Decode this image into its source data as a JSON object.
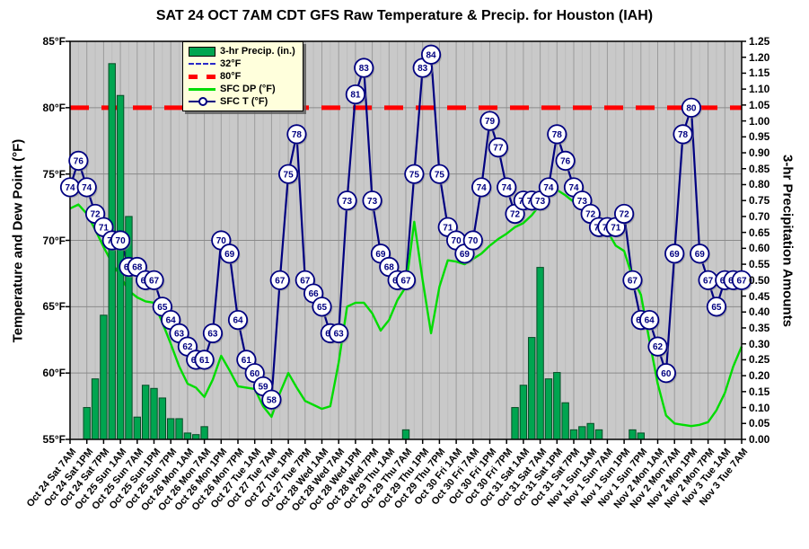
{
  "title": "SAT 24 OCT 7AM CDT GFS Raw Temperature & Precip. for Houston (IAH)",
  "legend": {
    "items": [
      {
        "swatch": "bar",
        "label": "3-hr Precip. (in.)",
        "color": "#00A550"
      },
      {
        "swatch": "dash-thin",
        "label": "32°F",
        "color": "#2929C8"
      },
      {
        "swatch": "dash-thick",
        "label": "80°F",
        "color": "#FF0000"
      },
      {
        "swatch": "line",
        "label": "SFC DP (°F)",
        "color": "#00DC00"
      },
      {
        "swatch": "line-marker",
        "label": "SFC T (°F)",
        "color": "#000080"
      }
    ]
  },
  "chart_data": {
    "type": "bar+line combo, 3-hourly model time series",
    "title": "SAT 24 OCT 7AM CDT GFS Raw Temperature & Precip. for Houston (IAH)",
    "x_label_step_hours": 6,
    "data_step_hours": 3,
    "x_labels": [
      "Oct 24 Sat 7AM",
      "Oct 24 Sat 1PM",
      "Oct 24 Sat 7PM",
      "Oct 25 Sun 1AM",
      "Oct 25 Sun 7AM",
      "Oct 25 Sun 1PM",
      "Oct 25 Sun 7PM",
      "Oct 26 Mon 1AM",
      "Oct 26 Mon 7AM",
      "Oct 26 Mon 1PM",
      "Oct 26 Mon 7PM",
      "Oct 27 Tue 1AM",
      "Oct 27 Tue 7AM",
      "Oct 27 Tue 1PM",
      "Oct 27 Tue 7PM",
      "Oct 28 Wed 1AM",
      "Oct 28 Wed 7AM",
      "Oct 28 Wed 1PM",
      "Oct 28 Wed 7PM",
      "Oct 29 Thu 1AM",
      "Oct 29 Thu 7AM",
      "Oct 29 Thu 1PM",
      "Oct 29 Thu 7PM",
      "Oct 30 Fri 1AM",
      "Oct 30 Fri 7AM",
      "Oct 30 Fri 1PM",
      "Oct 30 Fri 7PM",
      "Oct 31 Sat 1AM",
      "Oct 31 Sat 7AM",
      "Oct 31 Sat 1PM",
      "Oct 31 Sat 7PM",
      "Nov 1 Sun 1AM",
      "Nov 1 Sun 7AM",
      "Nov 1 Sun 1PM",
      "Nov 1 Sun 7PM",
      "Nov 2 Mon 1AM",
      "Nov 2 Mon 7AM",
      "Nov 2 Mon 1PM",
      "Nov 2 Mon 7PM",
      "Nov 3 Tue 1AM",
      "Nov 3 Tue 7AM"
    ],
    "y_left": {
      "title": "Temperature and Dew Point (°F)",
      "min": 55,
      "max": 85,
      "step": 5,
      "ticks": [
        "55°F",
        "60°F",
        "65°F",
        "70°F",
        "75°F",
        "80°F",
        "85°F"
      ]
    },
    "y_right": {
      "title": "3-hr Precipitation Amounts",
      "min": 0.0,
      "max": 1.25,
      "step": 0.05,
      "ticks": [
        "0.00",
        "0.05",
        "0.10",
        "0.15",
        "0.20",
        "0.25",
        "0.30",
        "0.35",
        "0.40",
        "0.45",
        "0.50",
        "0.55",
        "0.60",
        "0.65",
        "0.70",
        "0.75",
        "0.80",
        "0.85",
        "0.90",
        "0.95",
        "1.00",
        "1.05",
        "1.10",
        "1.15",
        "1.20",
        "1.25"
      ]
    },
    "reference_lines": [
      {
        "label": "80°F",
        "value": 80,
        "color": "#FF0000",
        "style": "thick-dashed",
        "visible_in_plot": true
      },
      {
        "label": "32°F",
        "value": 32,
        "color": "#2929C8",
        "style": "dashed",
        "visible_in_plot": false
      }
    ],
    "grid": {
      "vertical_minor_every_points": 1,
      "vertical_major_every_points": 2,
      "horizontal_every_deg": 5
    },
    "legend_position": "top-left-inside",
    "series": [
      {
        "name": "SFC T (°F)",
        "type": "line-with-labeled-markers",
        "axis": "left",
        "color": "#000080",
        "values": [
          74,
          76,
          74,
          72,
          71,
          70,
          70,
          68,
          68,
          67,
          67,
          65,
          64,
          63,
          62,
          61,
          61,
          63,
          70,
          69,
          64,
          61,
          60,
          59,
          58,
          67,
          75,
          78,
          67,
          66,
          65,
          63,
          63,
          73,
          81,
          83,
          73,
          69,
          68,
          67,
          67,
          75,
          83,
          84,
          75,
          71,
          70,
          69,
          70,
          74,
          79,
          77,
          74,
          72,
          73,
          73,
          73,
          74,
          78,
          76,
          74,
          73,
          72,
          71,
          71,
          71,
          72,
          67,
          64,
          64,
          62,
          60,
          69,
          78,
          80,
          69,
          67,
          65,
          67,
          67,
          67
        ]
      },
      {
        "name": "SFC DP (°F)",
        "type": "line",
        "axis": "left",
        "color": "#00DC00",
        "values": [
          72.4,
          72.7,
          72.0,
          70.8,
          69.5,
          68.3,
          67.3,
          66.2,
          65.7,
          65.4,
          65.3,
          63.8,
          62.2,
          60.5,
          59.2,
          58.9,
          58.2,
          59.5,
          61.3,
          60.2,
          59.0,
          58.9,
          58.8,
          57.5,
          56.7,
          58.5,
          60.0,
          58.9,
          57.9,
          57.6,
          57.3,
          57.5,
          60.8,
          65.0,
          65.3,
          65.3,
          64.5,
          63.2,
          64.0,
          65.5,
          66.5,
          71.4,
          67.0,
          63.0,
          66.5,
          68.5,
          68.4,
          68.2,
          68.6,
          69.0,
          69.6,
          70.1,
          70.5,
          71.0,
          71.3,
          71.9,
          72.7,
          73.6,
          73.8,
          73.4,
          72.9,
          72.5,
          72.2,
          71.5,
          70.7,
          69.6,
          69.2,
          67.2,
          65.9,
          62.5,
          59.2,
          56.8,
          56.2,
          56.1,
          56.0,
          56.1,
          56.3,
          57.2,
          58.5,
          60.5,
          62.0
        ]
      },
      {
        "name": "3-hr Precip. (in.)",
        "type": "bar",
        "axis": "right",
        "color": "#00A550",
        "values": [
          0,
          0,
          0.1,
          0.19,
          0.39,
          1.18,
          1.08,
          0.7,
          0.07,
          0.17,
          0.16,
          0.13,
          0.065,
          0.065,
          0.02,
          0.015,
          0.04,
          0,
          0,
          0,
          0,
          0,
          0,
          0,
          0,
          0,
          0,
          0,
          0,
          0,
          0,
          0,
          0,
          0,
          0,
          0,
          0,
          0,
          0,
          0,
          0.03,
          0,
          0,
          0,
          0,
          0,
          0,
          0,
          0,
          0,
          0,
          0,
          0,
          0.1,
          0.17,
          0.32,
          0.54,
          0.19,
          0.21,
          0.115,
          0.03,
          0.04,
          0.05,
          0.03,
          0,
          0,
          0,
          0.03,
          0.02,
          0,
          0,
          0,
          0,
          0,
          0,
          0,
          0,
          0,
          0,
          0,
          0
        ]
      }
    ]
  }
}
